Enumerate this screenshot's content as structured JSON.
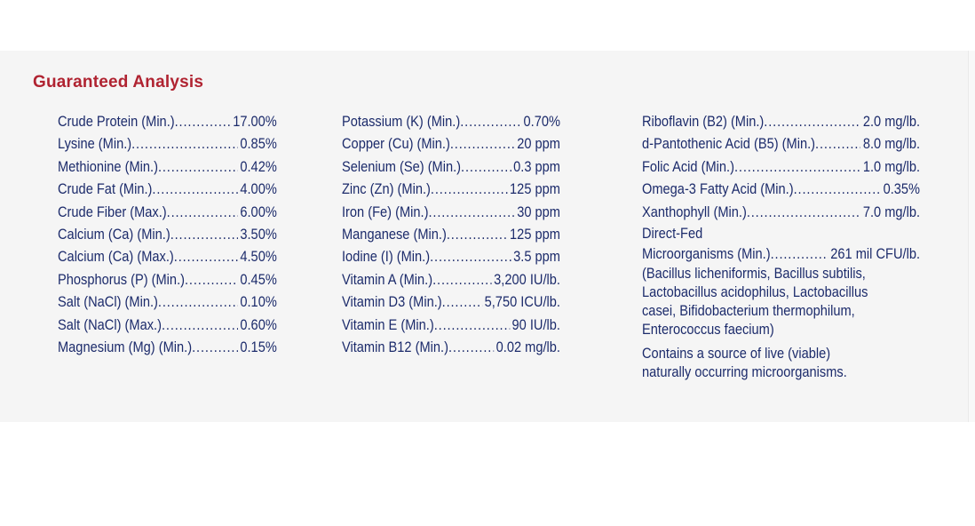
{
  "title": "Guaranteed Analysis",
  "colors": {
    "title_red": "#b02331",
    "body_navy": "#1c2b6b",
    "panel_bg": "#f5f5f5"
  },
  "column1": {
    "items": [
      {
        "label": "Crude Protein (Min.)",
        "value": "17.00%"
      },
      {
        "label": "Lysine (Min.)",
        "value": "0.85%"
      },
      {
        "label": "Methionine (Min.)",
        "value": "0.42%"
      },
      {
        "label": "Crude Fat (Min.)",
        "value": "4.00%"
      },
      {
        "label": "Crude Fiber (Max.)",
        "value": "6.00%"
      },
      {
        "label": "Calcium (Ca) (Min.)",
        "value": "3.50%"
      },
      {
        "label": "Calcium (Ca) (Max.)",
        "value": "4.50%"
      },
      {
        "label": "Phosphorus (P) (Min.)",
        "value": "0.45%"
      },
      {
        "label": "Salt (NaCl) (Min.)",
        "value": "0.10%"
      },
      {
        "label": "Salt (NaCl) (Max.)",
        "value": "0.60%"
      },
      {
        "label": "Magnesium (Mg) (Min.)",
        "value": "0.15%"
      }
    ]
  },
  "column2": {
    "items": [
      {
        "label": "Potassium (K) (Min.)",
        "value": "0.70%"
      },
      {
        "label": "Copper (Cu) (Min.)",
        "value": "20 ppm"
      },
      {
        "label": "Selenium (Se) (Min.)",
        "value": "0.3 ppm"
      },
      {
        "label": "Zinc (Zn) (Min.)",
        "value": "125 ppm"
      },
      {
        "label": "Iron (Fe) (Min.)",
        "value": "30 ppm"
      },
      {
        "label": "Manganese (Min.)",
        "value": "125 ppm"
      },
      {
        "label": "Iodine (I) (Min.)",
        "value": "3.5 ppm"
      },
      {
        "label": "Vitamin A (Min.)",
        "value": "3,200 IU/lb."
      },
      {
        "label": "Vitamin D3 (Min.)",
        "value": "5,750 ICU/lb."
      },
      {
        "label": "Vitamin E (Min.)",
        "value": "90 IU/lb."
      },
      {
        "label": "Vitamin B12 (Min.)",
        "value": "0.02 mg/lb."
      }
    ]
  },
  "column3": {
    "items": [
      {
        "label": "Riboflavin (B2) (Min.)",
        "value": "2.0 mg/lb."
      },
      {
        "label": "d-Pantothenic Acid (B5) (Min.)",
        "value": "8.0 mg/lb."
      },
      {
        "label": "Folic Acid (Min.)",
        "value": "1.0 mg/lb."
      },
      {
        "label": "Omega-3 Fatty Acid (Min.)",
        "value": "0.35%"
      },
      {
        "label": "Xanthophyll (Min.)",
        "value": "7.0 mg/lb."
      }
    ],
    "direct_fed_prefix": "Direct-Fed",
    "direct_fed": {
      "label": "Microorganisms (Min.)",
      "value": "261 mil CFU/lb."
    },
    "microorganisms_note": "(Bacillus licheniformis, Bacillus subtilis, Lactobacillus acidophilus, Lactobacillus casei, Bifidobacterium thermophilum, Enterococcus faecium)",
    "live_note": "Contains a source of live (viable) naturally occurring microorganisms."
  }
}
